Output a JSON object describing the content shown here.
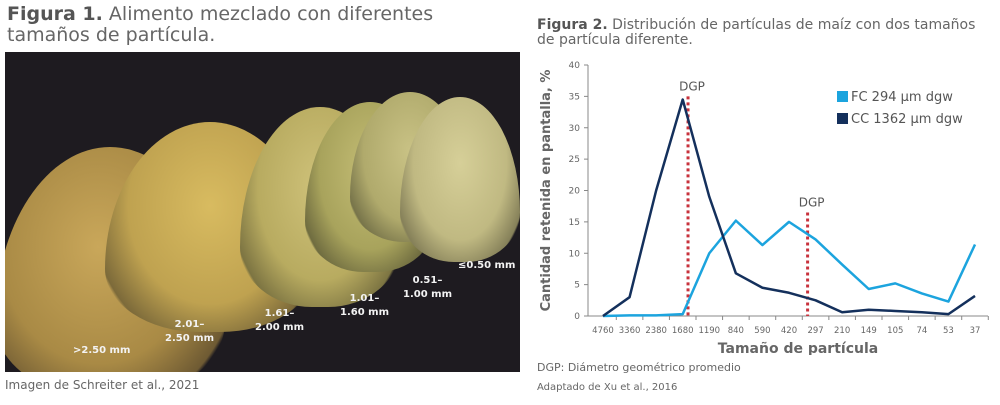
{
  "figure1": {
    "label": "Figura 1.",
    "title": " Alimento mezclado con diferentes tamaños de partícula.",
    "photo_labels": [
      ">2.50 mm",
      "2.01–\n2.50 mm",
      "1.61–\n2.00 mm",
      "1.01–\n1.60 mm",
      "0.51–\n1.00 mm",
      "≤0.50 mm"
    ],
    "caption": "Imagen de Schreiter et al., 2021"
  },
  "figure2": {
    "label": "Figura 2.",
    "title": " Distribución de partículas de maíz con dos tamaños de partícula diferente.",
    "footnote": "DGP: Diámetro geométrico promedio",
    "source": "Adaptado de Xu et al., 2016"
  },
  "chart_data": {
    "type": "line",
    "xlabel": "Tamaño de partícula",
    "ylabel": "Cantidad retenida en pantalla, %",
    "ylim": [
      0,
      40
    ],
    "yticks": [
      0,
      5,
      10,
      15,
      20,
      25,
      30,
      35,
      40
    ],
    "categories": [
      "4760",
      "3360",
      "2380",
      "1680",
      "1190",
      "840",
      "590",
      "420",
      "297",
      "210",
      "149",
      "105",
      "74",
      "53",
      "37"
    ],
    "series": [
      {
        "name": "FC  294 µm dgw",
        "color": "#1ca4de",
        "values": [
          0,
          0.1,
          0.1,
          0.3,
          10,
          15.2,
          11.3,
          15,
          12.2,
          8.2,
          4.3,
          5.2,
          3.6,
          2.3,
          11.4
        ]
      },
      {
        "name": "CC 1362 µm dgw",
        "color": "#14305c",
        "values": [
          0,
          3,
          20,
          34.5,
          19,
          6.8,
          4.5,
          3.7,
          2.5,
          0.6,
          1,
          0.8,
          0.6,
          0.3,
          3.2
        ]
      }
    ],
    "annotations": [
      {
        "text": "DGP",
        "x_category_position": 3.2,
        "ymax": 35,
        "color": "#c8323c"
      },
      {
        "text": "DGP",
        "x_category_position": 7.7,
        "ymax": 16.5,
        "color": "#c8323c"
      }
    ],
    "legend": "top-right",
    "grid": false
  }
}
